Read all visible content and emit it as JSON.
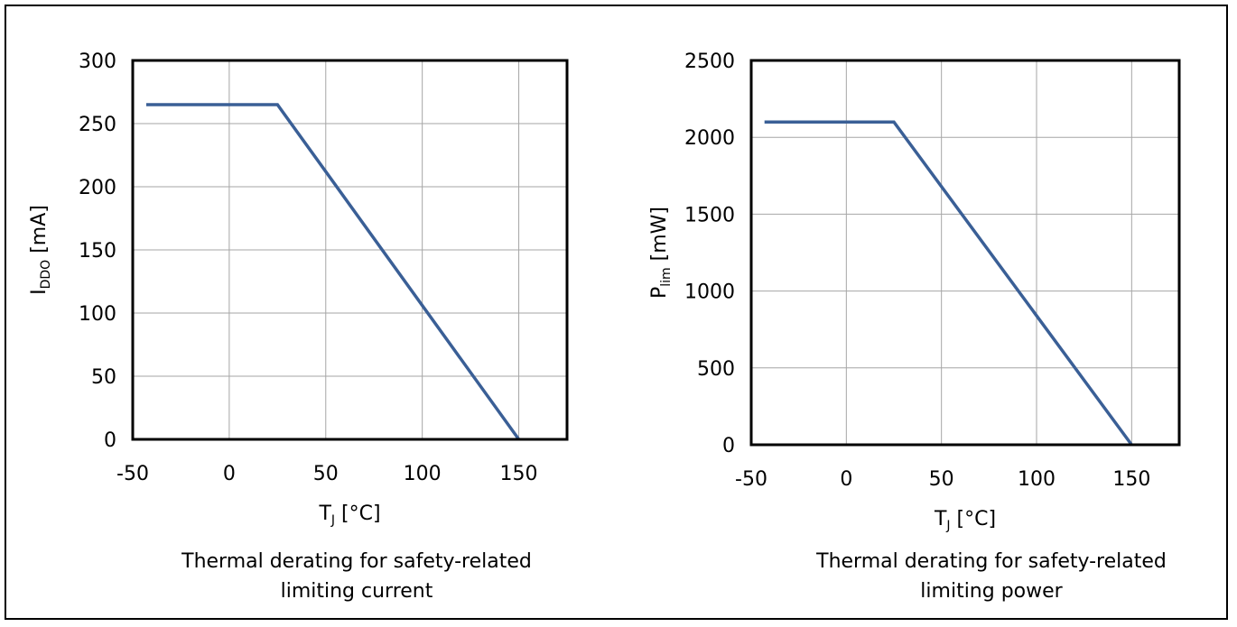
{
  "chart_data": [
    {
      "type": "line",
      "xlabel": {
        "main": "T",
        "sub": "J",
        "unit": "[°C]"
      },
      "ylabel": {
        "main": "I",
        "sub": "DDO",
        "unit": "[mA]"
      },
      "xlim": [
        -50,
        175
      ],
      "ylim": [
        0,
        300
      ],
      "xticks": [
        "-50",
        "0",
        "50",
        "100",
        "150"
      ],
      "yticks": [
        "0",
        "50",
        "100",
        "150",
        "200",
        "250",
        "300"
      ],
      "grid": true,
      "series": [
        {
          "color": "#3a5f96",
          "x": [
            -43,
            25,
            150
          ],
          "y": [
            265,
            265,
            0
          ]
        }
      ],
      "caption": [
        "Thermal derating for safety-related",
        "limiting current"
      ]
    },
    {
      "type": "line",
      "xlabel": {
        "main": "T",
        "sub": "J",
        "unit": "[°C]"
      },
      "ylabel": {
        "main": "P",
        "sub": "lim",
        "unit": "[mW]"
      },
      "xlim": [
        -50,
        175
      ],
      "ylim": [
        0,
        2500
      ],
      "xticks": [
        "-50",
        "0",
        "50",
        "100",
        "150"
      ],
      "yticks": [
        "0",
        "500",
        "1000",
        "1500",
        "2000",
        "2500"
      ],
      "grid": true,
      "series": [
        {
          "color": "#3a5f96",
          "x": [
            -43,
            25,
            150
          ],
          "y": [
            2100,
            2100,
            0
          ]
        }
      ],
      "caption": [
        "Thermal derating for safety-related",
        "limiting power"
      ]
    }
  ]
}
